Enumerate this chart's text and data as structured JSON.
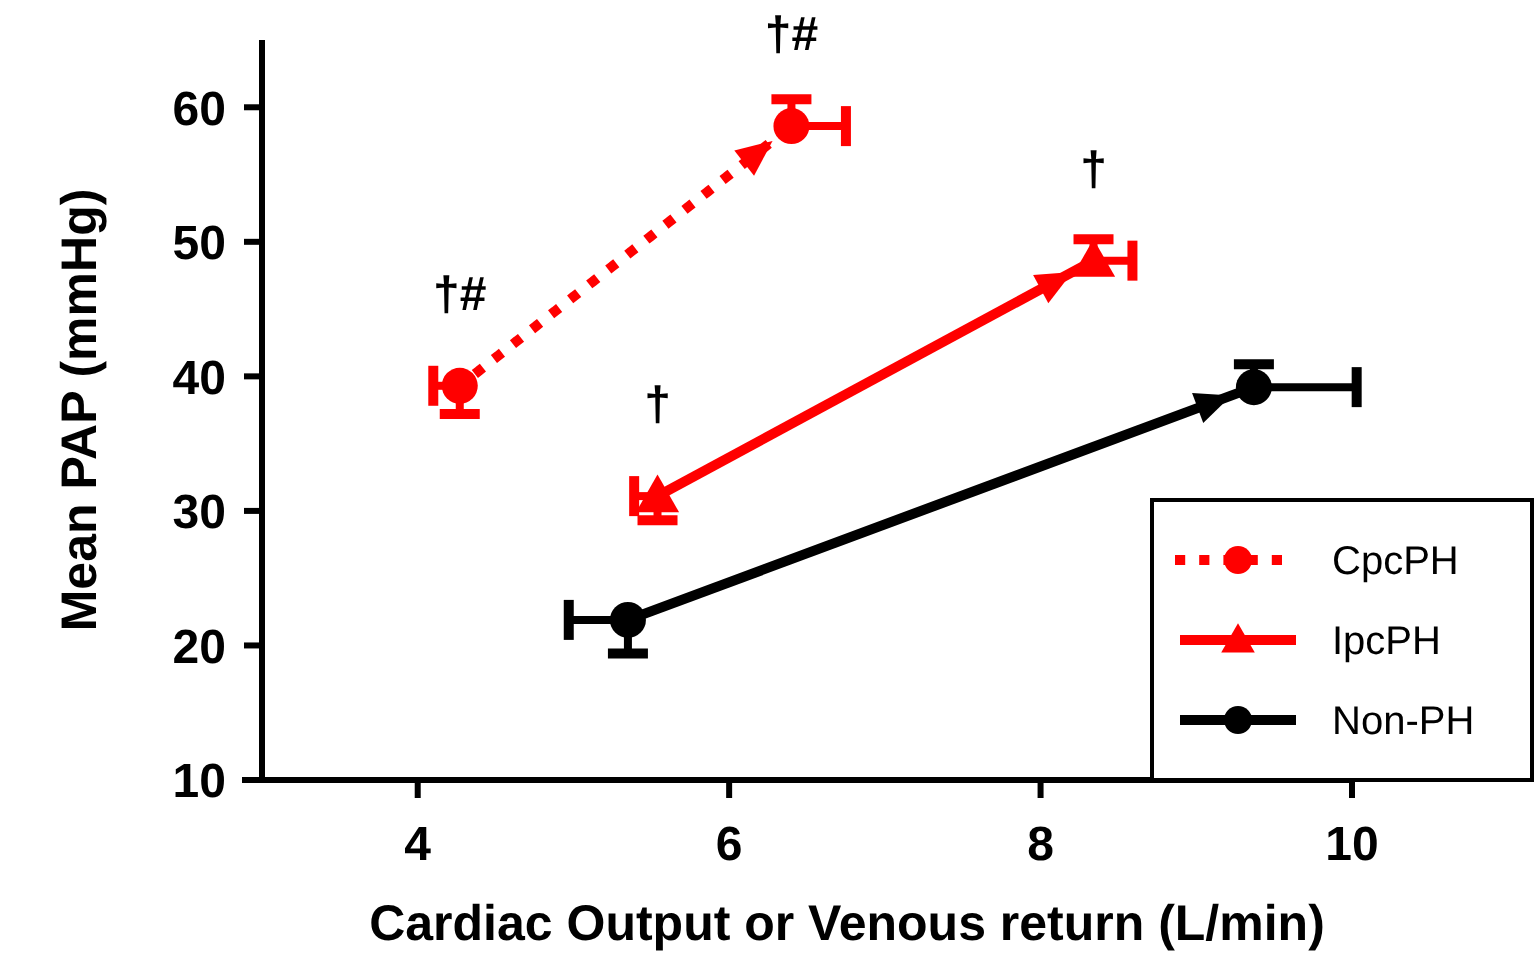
{
  "chart_data": {
    "type": "line",
    "xlabel": "Cardiac Output or Venous return (L/min)",
    "ylabel": "Mean PAP (mmHg)",
    "xlim": [
      3,
      10
    ],
    "xticks": [
      4,
      6,
      8,
      10
    ],
    "ylim": [
      10,
      65
    ],
    "yticks": [
      10,
      20,
      30,
      40,
      50,
      60
    ],
    "grid": false,
    "legend": "bottom right",
    "series": [
      {
        "name": "CpcPH",
        "color": "#ff0000",
        "line_style": "dotted",
        "marker": "circle",
        "x": [
          4.27,
          6.4
        ],
        "values": [
          39.3,
          58.6
        ],
        "errors": [
          [
            37.2,
            39.3
          ],
          [
            58.6,
            60.6
          ]
        ],
        "xerrors": [
          [
            4.1,
            4.27
          ],
          [
            6.4,
            6.75
          ]
        ]
      },
      {
        "name": "IpcPH",
        "color": "#ff0000",
        "line_style": "solid",
        "marker": "triangle",
        "x": [
          5.54,
          8.34
        ],
        "values": [
          31.1,
          48.6
        ],
        "errors": [
          [
            29.3,
            31.1
          ],
          [
            48.6,
            50.2
          ]
        ],
        "xerrors": [
          [
            5.39,
            5.54
          ],
          [
            8.34,
            8.59
          ]
        ]
      },
      {
        "name": "Non-PH",
        "color": "#000000",
        "line_style": "solid",
        "marker": "circle",
        "x": [
          5.35,
          9.37
        ],
        "values": [
          21.9,
          39.2
        ],
        "errors": [
          [
            19.4,
            21.9
          ],
          [
            39.2,
            40.9
          ]
        ],
        "xerrors": [
          [
            4.97,
            5.35
          ],
          [
            9.37,
            10.03
          ]
        ]
      }
    ],
    "annotations": [
      {
        "text": "†#",
        "x": 4.27,
        "y": 39.3
      },
      {
        "text": "†#",
        "x": 6.4,
        "y": 58.6
      },
      {
        "text": "†",
        "x": 5.54,
        "y": 31.1
      },
      {
        "text": "†",
        "x": 8.34,
        "y": 48.6
      }
    ]
  }
}
